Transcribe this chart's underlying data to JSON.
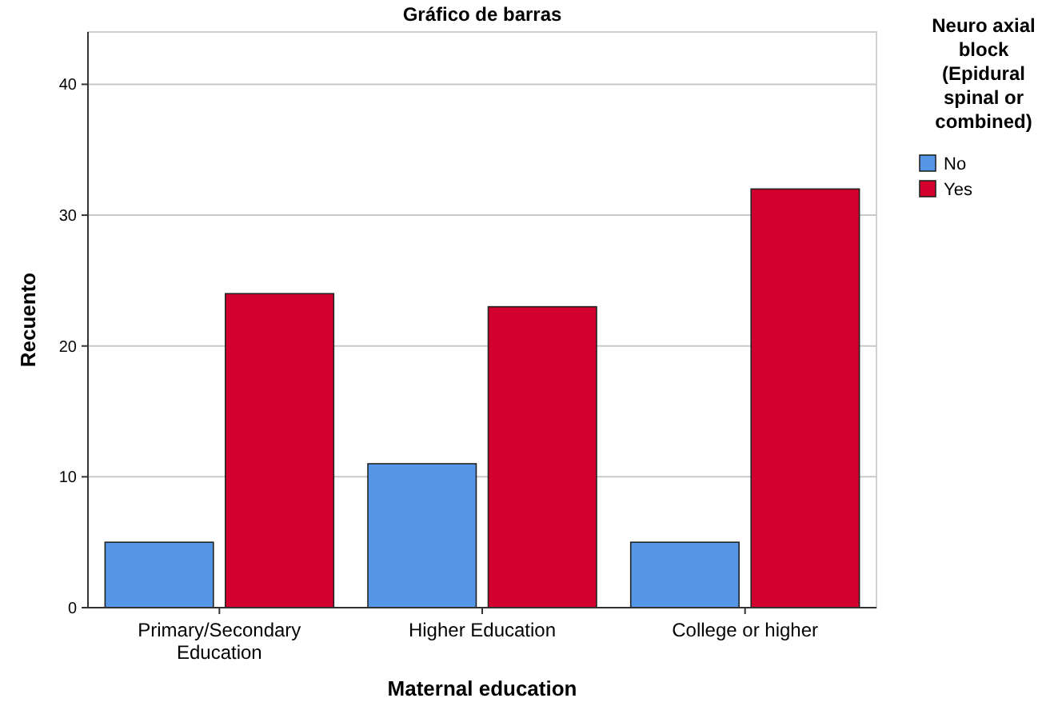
{
  "chart_data": {
    "type": "bar",
    "title": "Gráfico de barras",
    "xlabel": "Maternal education",
    "ylabel": "Recuento",
    "legend_title": "Neuro axial block (Epidural spinal or combined)",
    "categories": [
      "Primary/Secondary Education",
      "Higher Education",
      "College or higher"
    ],
    "series": [
      {
        "name": "No",
        "color": "#5596e6",
        "values": [
          5,
          11,
          5
        ]
      },
      {
        "name": "Yes",
        "color": "#d2002e",
        "values": [
          24,
          23,
          32
        ]
      }
    ],
    "ylim": [
      0,
      44
    ],
    "yticks": [
      0,
      10,
      20,
      30,
      40
    ],
    "grid": "y",
    "legend": "right"
  }
}
